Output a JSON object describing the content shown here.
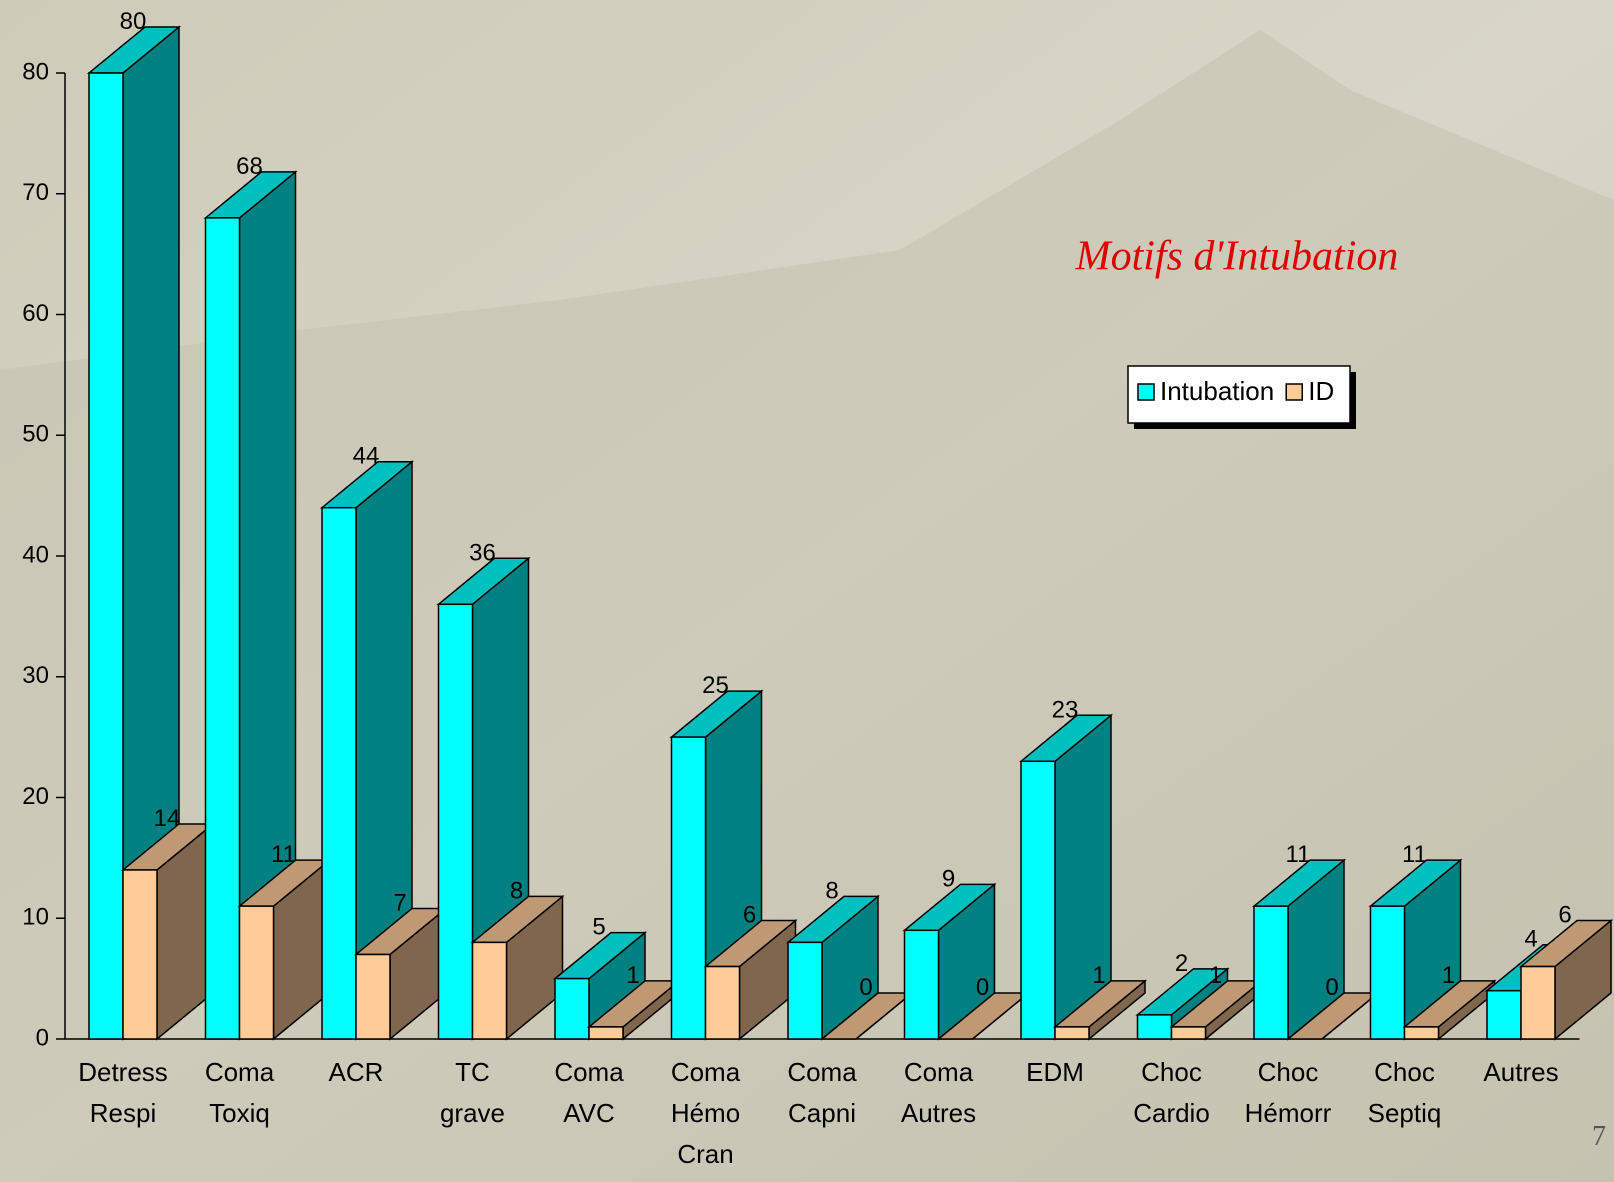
{
  "chart_data": {
    "type": "bar3d",
    "title": "Motifs d'Intubation",
    "categories": [
      "Detress Respi",
      "Coma Toxiq",
      "ACR",
      "TC grave",
      "Coma AVC",
      "Coma Hémo Cran",
      "Coma Capni",
      "Coma Autres",
      "EDM",
      "Choc Cardio",
      "Choc Hémorr",
      "Choc Septiq",
      "Autres"
    ],
    "series": [
      {
        "name": "Intubation",
        "color": "#00ffff",
        "values": [
          80,
          68,
          44,
          36,
          5,
          25,
          8,
          9,
          23,
          2,
          11,
          11,
          4
        ]
      },
      {
        "name": "ID",
        "color": "#ffcc99",
        "values": [
          14,
          11,
          7,
          8,
          1,
          6,
          0,
          0,
          1,
          1,
          0,
          1,
          6
        ]
      }
    ],
    "ylim": [
      0,
      80
    ],
    "yticks": [
      0,
      10,
      20,
      30,
      40,
      50,
      60,
      70,
      80
    ],
    "grid": false,
    "legend": "upper right",
    "page_number": "7"
  }
}
